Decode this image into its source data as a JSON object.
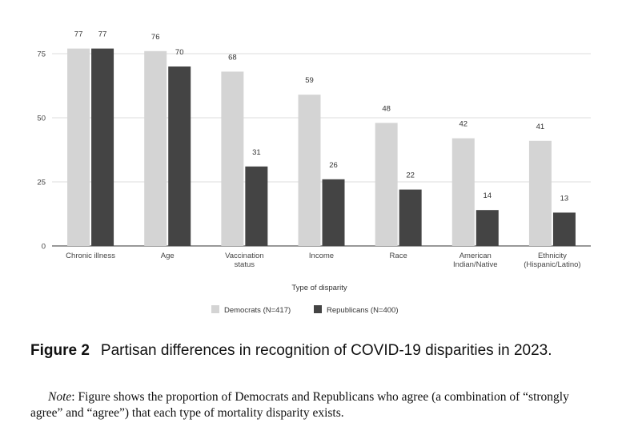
{
  "chart_data": {
    "type": "bar",
    "categories": [
      [
        "Chronic illness"
      ],
      [
        "Age"
      ],
      [
        "Vaccination",
        "status"
      ],
      [
        "Income"
      ],
      [
        "Race"
      ],
      [
        "American",
        "Indian/Native"
      ],
      [
        "Ethnicity",
        "(Hispanic/Latino)"
      ]
    ],
    "series": [
      {
        "name": "Democrats (N=417)",
        "color": "#d4d4d4",
        "values": [
          77,
          76,
          68,
          59,
          48,
          42,
          41
        ]
      },
      {
        "name": "Republicans (N=400)",
        "color": "#444444",
        "values": [
          77,
          70,
          31,
          26,
          22,
          14,
          13
        ]
      }
    ],
    "xlabel": "Type of disparity",
    "ylabel": "",
    "ylim": [
      0,
      86
    ],
    "yticks": [
      0,
      25,
      50,
      75
    ],
    "grid": true,
    "legend": "bottom-center"
  },
  "figure": {
    "number": "Figure 2",
    "title": "Partisan differences in recognition of COVID-19 disparities in 2023.",
    "note_label": "Note",
    "note_text": ": Figure shows the proportion of Democrats and Republicans who agree (a combination of “strongly agree” and “agree”) that each type of mortality disparity exists."
  }
}
